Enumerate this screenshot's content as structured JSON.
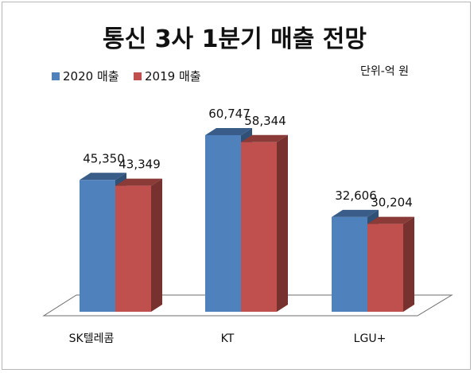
{
  "chart_data": {
    "type": "bar",
    "title": "통신 3사 1분기 매출 전망",
    "unit_note": "단위-억 원",
    "categories": [
      "SK텔레콤",
      "KT",
      "LGU+"
    ],
    "series": [
      {
        "name": "2020 매출",
        "values": [
          45350,
          60747,
          32606
        ],
        "color": "#4f81bd"
      },
      {
        "name": "2019 매출",
        "values": [
          43349,
          58344,
          30204
        ],
        "color": "#c0504d"
      }
    ],
    "value_labels": [
      [
        "45,350",
        "60,747",
        "32,606"
      ],
      [
        "43,349",
        "58,344",
        "30,204"
      ]
    ],
    "ylim": [
      0,
      70000
    ],
    "grid": false,
    "legend_position": "top-left",
    "style": "3d-clustered-column"
  }
}
